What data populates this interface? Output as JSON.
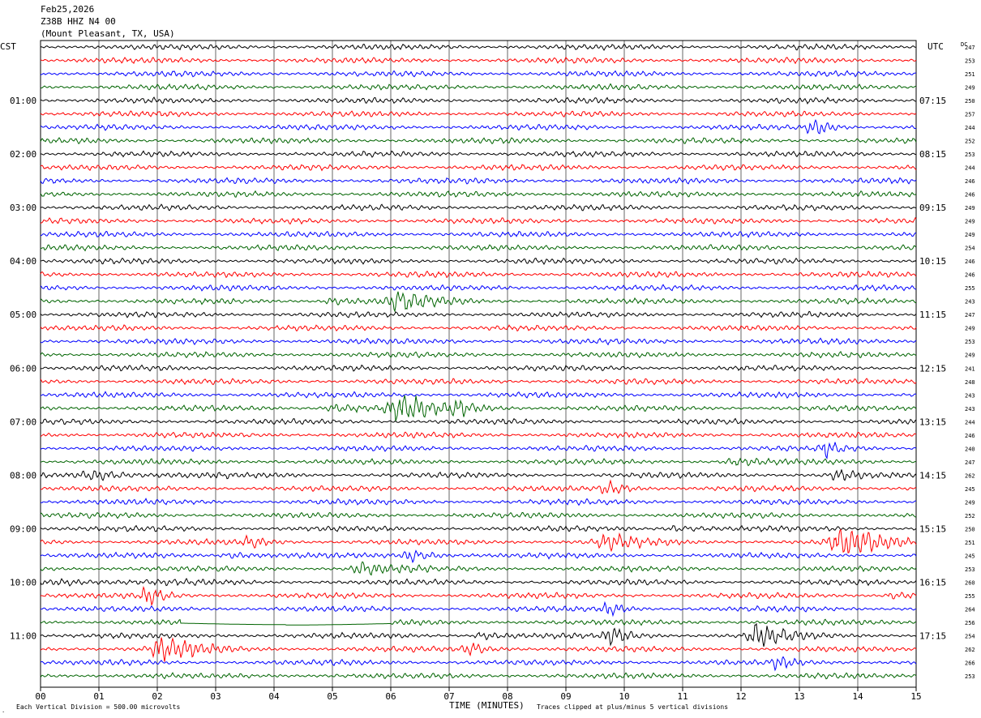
{
  "header": {
    "date": "Feb25,2026",
    "station": "Z38B HHZ N4 00",
    "location": "(Mount Pleasant, TX, USA)"
  },
  "labels": {
    "left_tz": "CST",
    "right_tz": "UTC",
    "dc": "DC"
  },
  "footer": {
    "scale_note": "Each Vertical Division =  500.00 microvolts",
    "xlabel": "TIME (MINUTES)",
    "clip_note": "Traces clipped at plus/minus 5 vertical divisions"
  },
  "colors": {
    "trace_cycle": [
      "#000000",
      "#ff0000",
      "#0000ff",
      "#006400"
    ],
    "grid": "#000000"
  },
  "chart_data": {
    "type": "line",
    "title": "Z38B HHZ N4 00",
    "xlabel": "TIME (MINUTES)",
    "xlim": [
      0,
      15
    ],
    "x_ticks": [
      "00",
      "01",
      "02",
      "03",
      "04",
      "05",
      "06",
      "07",
      "08",
      "09",
      "10",
      "11",
      "12",
      "13",
      "14",
      "15"
    ],
    "trace_minutes": 15,
    "traces": 48,
    "left_hour_labels": [
      "01:00",
      "02:00",
      "03:00",
      "04:00",
      "05:00",
      "06:00",
      "07:00",
      "08:00",
      "09:00",
      "10:00",
      "11:00"
    ],
    "right_hour_labels": [
      "07:15",
      "08:15",
      "09:15",
      "10:15",
      "11:15",
      "12:15",
      "13:15",
      "14:15",
      "15:15",
      "16:15",
      "17:15"
    ],
    "dc_offsets": [
      247,
      253,
      251,
      249,
      250,
      257,
      244,
      252,
      253,
      244,
      246,
      246,
      249,
      249,
      249,
      254,
      246,
      246,
      255,
      243,
      247,
      249,
      253,
      249,
      241,
      248,
      243,
      243,
      244,
      246,
      240,
      247,
      262,
      245,
      249,
      252,
      250,
      251,
      245,
      253,
      260,
      255,
      264,
      256,
      254,
      262,
      266,
      253
    ],
    "events": [
      {
        "trace": 6,
        "minute": 13.25,
        "amp": 3.0,
        "dur": 0.3
      },
      {
        "trace": 19,
        "minute": 5.0,
        "amp": 1.3,
        "dur": 0.4
      },
      {
        "trace": 19,
        "minute": 6.15,
        "amp": 2.2,
        "dur": 0.6
      },
      {
        "trace": 27,
        "minute": 5.05,
        "amp": 1.8,
        "dur": 0.5
      },
      {
        "trace": 27,
        "minute": 6.2,
        "amp": 3.0,
        "dur": 0.6
      },
      {
        "trace": 27,
        "minute": 7.2,
        "amp": 1.6,
        "dur": 0.5
      },
      {
        "trace": 30,
        "minute": 13.45,
        "amp": 1.6,
        "dur": 0.3
      },
      {
        "trace": 31,
        "minute": 11.85,
        "amp": 1.2,
        "dur": 0.4
      },
      {
        "trace": 32,
        "minute": 1.0,
        "amp": 1.8,
        "dur": 0.9
      },
      {
        "trace": 32,
        "minute": 13.65,
        "amp": 1.4,
        "dur": 0.3
      },
      {
        "trace": 33,
        "minute": 9.75,
        "amp": 2.0,
        "dur": 0.4
      },
      {
        "trace": 36,
        "minute": 10.9,
        "amp": 1.4,
        "dur": 0.5
      },
      {
        "trace": 37,
        "minute": 3.6,
        "amp": 1.5,
        "dur": 0.3
      },
      {
        "trace": 37,
        "minute": 9.7,
        "amp": 2.0,
        "dur": 0.5
      },
      {
        "trace": 37,
        "minute": 13.8,
        "amp": 3.0,
        "dur": 0.8
      },
      {
        "trace": 38,
        "minute": 3.3,
        "amp": 1.3,
        "dur": 0.5
      },
      {
        "trace": 38,
        "minute": 6.4,
        "amp": 2.2,
        "dur": 0.5
      },
      {
        "trace": 39,
        "minute": 5.5,
        "amp": 1.9,
        "dur": 0.5
      },
      {
        "trace": 40,
        "minute": 0.5,
        "amp": 1.2,
        "dur": 1.0
      },
      {
        "trace": 41,
        "minute": 1.85,
        "amp": 2.4,
        "dur": 0.3
      },
      {
        "trace": 41,
        "minute": 14.6,
        "amp": 1.6,
        "dur": 0.3
      },
      {
        "trace": 42,
        "minute": 9.75,
        "amp": 2.0,
        "dur": 0.3
      },
      {
        "trace": 44,
        "minute": 7.55,
        "amp": 1.8,
        "dur": 0.3
      },
      {
        "trace": 44,
        "minute": 9.8,
        "amp": 2.2,
        "dur": 0.4
      },
      {
        "trace": 44,
        "minute": 12.3,
        "amp": 2.8,
        "dur": 0.5
      },
      {
        "trace": 45,
        "minute": 2.1,
        "amp": 3.0,
        "dur": 0.6
      },
      {
        "trace": 45,
        "minute": 7.4,
        "amp": 2.0,
        "dur": 0.4
      },
      {
        "trace": 46,
        "minute": 12.65,
        "amp": 1.4,
        "dur": 0.3
      }
    ],
    "flat_segments": [
      {
        "trace": 43,
        "start": 2.4,
        "end": 6.0
      }
    ]
  }
}
